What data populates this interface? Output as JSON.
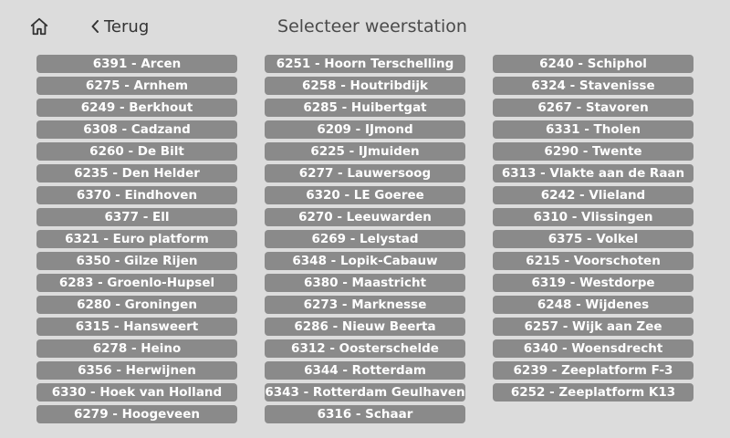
{
  "header": {
    "home_icon": "home-icon",
    "back_icon": "chevron-left-icon",
    "back_label": "Terug",
    "title": "Selecteer weerstation"
  },
  "colors": {
    "background": "#dcdcdc",
    "button": "#8a8a8a",
    "button_text": "#ffffff",
    "title_text": "#4a4a4a"
  },
  "stations": {
    "col1": [
      "6391 - Arcen",
      "6275 - Arnhem",
      "6249 - Berkhout",
      "6308 - Cadzand",
      "6260 - De Bilt",
      "6235 - Den Helder",
      "6370 - Eindhoven",
      "6377 - Ell",
      "6321 - Euro platform",
      "6350 - Gilze Rijen",
      "6283 - Groenlo-Hupsel",
      "6280 - Groningen",
      "6315 - Hansweert",
      "6278 - Heino",
      "6356 - Herwijnen",
      "6330 - Hoek van Holland",
      "6279 - Hoogeveen"
    ],
    "col2": [
      "6251 - Hoorn Terschelling",
      "6258 - Houtribdijk",
      "6285 - Huibertgat",
      "6209 - IJmond",
      "6225 - IJmuiden",
      "6277 - Lauwersoog",
      "6320 - LE Goeree",
      "6270 - Leeuwarden",
      "6269 - Lelystad",
      "6348 - Lopik-Cabauw",
      "6380 - Maastricht",
      "6273 - Marknesse",
      "6286 - Nieuw Beerta",
      "6312 - Oosterschelde",
      "6344 - Rotterdam",
      "6343 - Rotterdam Geulhaven",
      "6316 - Schaar"
    ],
    "col3": [
      "6240 - Schiphol",
      "6324 - Stavenisse",
      "6267 - Stavoren",
      "6331 - Tholen",
      "6290 - Twente",
      "6313 - Vlakte aan de Raan",
      "6242 - Vlieland",
      "6310 - Vlissingen",
      "6375 - Volkel",
      "6215 - Voorschoten",
      "6319 - Westdorpe",
      "6248 - Wijdenes",
      "6257 - Wijk aan Zee",
      "6340 - Woensdrecht",
      "6239 - Zeeplatform F-3",
      "6252 - Zeeplatform K13"
    ]
  }
}
